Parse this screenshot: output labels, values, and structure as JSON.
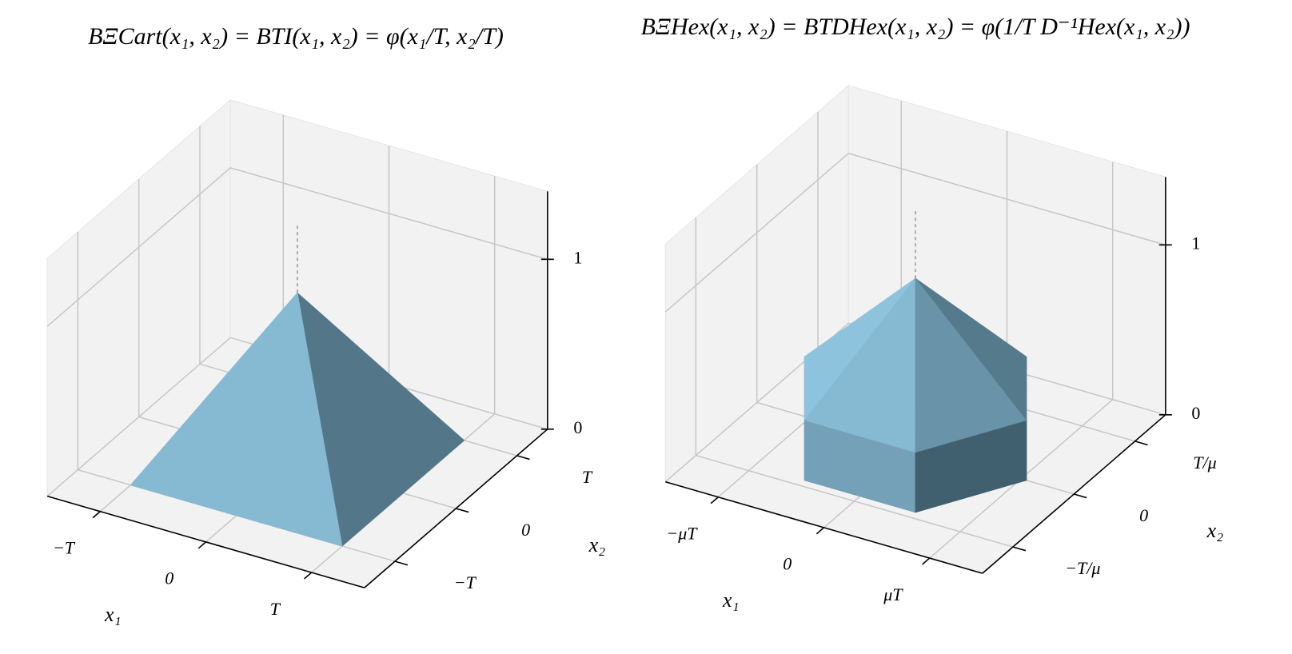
{
  "chart_data": [
    {
      "type": "surface",
      "title": "BΞCart(x₁, x₂) = BTI(x₁, x₂) = φ(x₁/T, x₂/T)",
      "xlabel": "x₁",
      "ylabel": "x₂",
      "color": "#8ec3de",
      "xlim": [
        -1.5,
        1.5
      ],
      "ylim": [
        -1.5,
        1.5
      ],
      "zlim": [
        0,
        1.4
      ],
      "xticks": [
        {
          "value": -1,
          "label": "−T"
        },
        0,
        {
          "value": 1,
          "label": "T"
        }
      ],
      "yticks": [
        {
          "value": -1,
          "label": "−T"
        },
        0,
        {
          "value": 1,
          "label": "T"
        }
      ],
      "zticks": [
        0,
        1
      ]
    },
    {
      "type": "surface",
      "title": "BΞHex(x₁, x₂) = BTDHex(x₁, x₂) = φ(1/T D⁻¹Hex(x₁, x₂))",
      "xlabel": "x₁",
      "ylabel": "x₂",
      "color": "#8ec3de",
      "xlim": [
        -1.5,
        1.5
      ],
      "ylim": [
        -1.5,
        1.5
      ],
      "zlim": [
        0,
        1.4
      ],
      "xticks": [
        {
          "value": -1,
          "label": "−μT"
        },
        0,
        {
          "value": 1,
          "label": "μT"
        }
      ],
      "yticks": [
        {
          "value": -1,
          "label": "−T/μ"
        },
        0,
        {
          "value": 1,
          "label": "T/μ"
        }
      ],
      "zticks": [
        0,
        1
      ]
    }
  ]
}
